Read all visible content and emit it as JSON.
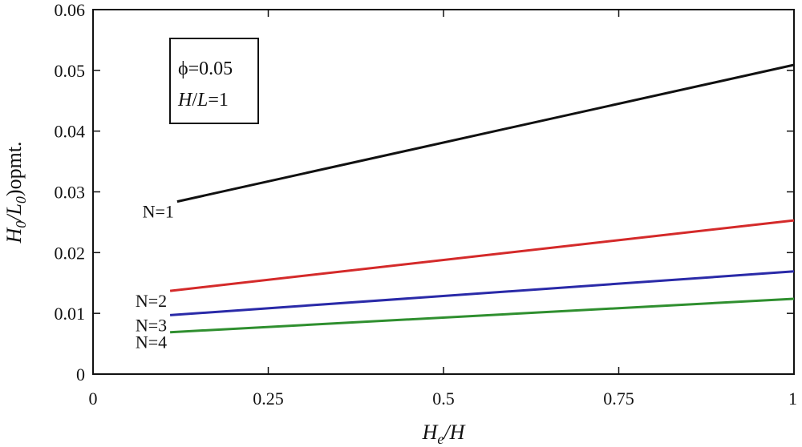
{
  "chart_data": {
    "type": "line",
    "title": "",
    "xlabel": {
      "main": "H",
      "sub": "e",
      "rest": "/H"
    },
    "ylabel": {
      "p1": "H",
      "s1": "0",
      "p2": "/L",
      "s2": "0",
      "p3": ")opmt."
    },
    "xlim": [
      0,
      1
    ],
    "ylim": [
      0,
      0.06
    ],
    "x_ticks": [
      0,
      0.25,
      0.5,
      0.75,
      1
    ],
    "x_tick_labels": [
      "0",
      "0.25",
      "0.5",
      "0.75",
      "1"
    ],
    "y_ticks": [
      0,
      0.01,
      0.02,
      0.03,
      0.04,
      0.05,
      0.06
    ],
    "y_tick_labels": [
      "0",
      "0.01",
      "0.02",
      "0.03",
      "0.04",
      "0.05",
      "0.06"
    ],
    "grid": false,
    "legend": {
      "position": "top-left",
      "line1": "ϕ=0.05",
      "line2": {
        "a": "H",
        "b": "/",
        "c": "L",
        "d": "=1"
      }
    },
    "series": [
      {
        "name": "N=1",
        "color": "#111111",
        "x": [
          0.12,
          1.0
        ],
        "y": [
          0.0284,
          0.0509
        ]
      },
      {
        "name": "N=2",
        "color": "#d42a2a",
        "x": [
          0.11,
          1.0
        ],
        "y": [
          0.0137,
          0.0253
        ]
      },
      {
        "name": "N=3",
        "color": "#2a2aa8",
        "x": [
          0.11,
          1.0
        ],
        "y": [
          0.0097,
          0.0169
        ]
      },
      {
        "name": "N=4",
        "color": "#2f8f2f",
        "x": [
          0.11,
          1.0
        ],
        "y": [
          0.0069,
          0.0124
        ]
      }
    ]
  }
}
